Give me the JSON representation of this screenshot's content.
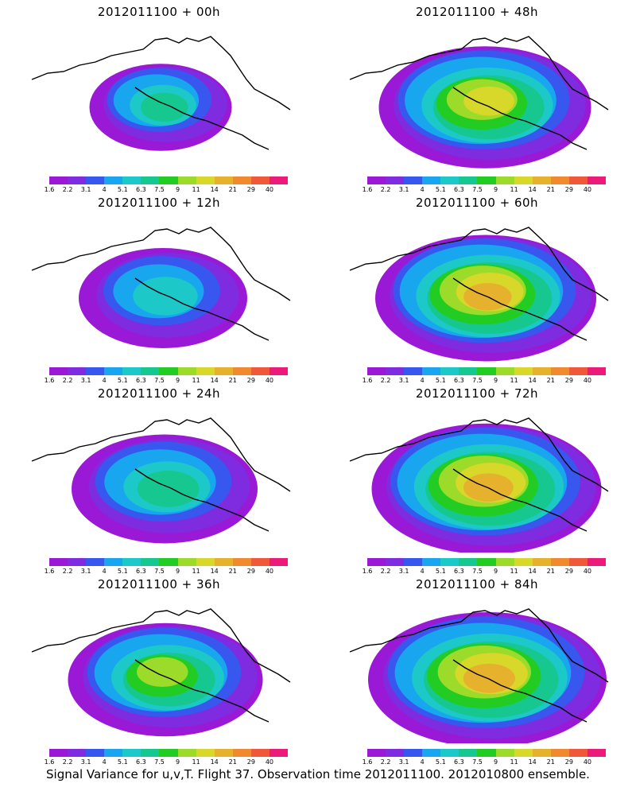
{
  "panels": [
    {
      "title": "2012011100 + 00h",
      "spread": 0.45,
      "maxLevel": 6
    },
    {
      "title": "2012011100 + 48h",
      "spread": 0.85,
      "maxLevel": 9
    },
    {
      "title": "2012011100 + 12h",
      "spread": 0.6,
      "maxLevel": 5
    },
    {
      "title": "2012011100 + 60h",
      "spread": 0.9,
      "maxLevel": 10
    },
    {
      "title": "2012011100 + 24h",
      "spread": 0.7,
      "maxLevel": 6
    },
    {
      "title": "2012011100 + 72h",
      "spread": 0.95,
      "maxLevel": 10
    },
    {
      "title": "2012011100 + 36h",
      "spread": 0.75,
      "maxLevel": 8
    },
    {
      "title": "2012011100 + 84h",
      "spread": 1.0,
      "maxLevel": 10
    }
  ],
  "colorbar": {
    "colors": [
      "#9a19d6",
      "#7f2be0",
      "#3857ee",
      "#18a6ef",
      "#1cc9c8",
      "#16c890",
      "#22cc22",
      "#9ddb2a",
      "#d8d82a",
      "#e6b22e",
      "#ef8a2e",
      "#f0583a",
      "#ee1a7a"
    ],
    "labels": [
      "1.6",
      "2.2",
      "3.1",
      "4",
      "5.1",
      "6.3",
      "7.5",
      "9",
      "11",
      "14",
      "21",
      "29",
      "40"
    ]
  },
  "caption": "Signal Variance for u,v,T. Flight 37. Observation time 2012011100. 2012010800 ensemble."
}
